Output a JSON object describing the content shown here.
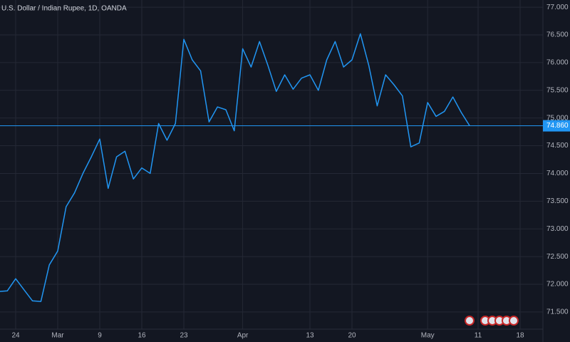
{
  "chart_data": {
    "type": "line",
    "title": "U.S. Dollar / Indian Rupee, 1D, OANDA",
    "categories": [
      null,
      null,
      "24",
      null,
      null,
      null,
      null,
      "Mar",
      null,
      null,
      null,
      null,
      "9",
      null,
      null,
      null,
      null,
      "16",
      null,
      null,
      null,
      null,
      "23",
      null,
      null,
      null,
      null,
      null,
      null,
      "Apr",
      null,
      null,
      null,
      null,
      null,
      null,
      null,
      "13",
      null,
      null,
      null,
      null,
      "20",
      null,
      null,
      null,
      null,
      null,
      null,
      null,
      null,
      "May",
      null,
      null,
      null,
      null,
      null,
      "11",
      null,
      null,
      null,
      null,
      "18",
      null,
      null
    ],
    "values": [
      71.87,
      71.88,
      72.1,
      71.9,
      71.7,
      71.69,
      72.35,
      72.6,
      73.4,
      73.65,
      74.0,
      74.3,
      74.62,
      73.73,
      74.3,
      74.4,
      73.9,
      74.1,
      74.0,
      74.9,
      74.6,
      74.9,
      76.42,
      76.05,
      75.85,
      74.93,
      75.2,
      75.15,
      74.77,
      76.25,
      75.92,
      76.38,
      75.95,
      75.48,
      75.78,
      75.52,
      75.72,
      75.78,
      75.5,
      76.05,
      76.38,
      75.92,
      76.05,
      76.52,
      75.95,
      75.22,
      75.78,
      75.6,
      75.4,
      74.48,
      74.55,
      75.28,
      75.03,
      75.12,
      75.38,
      75.1,
      74.86,
      null,
      null,
      null,
      null,
      null,
      null,
      null,
      null
    ],
    "color": "#2196f3",
    "ylim": [
      71.19,
      77.13
    ],
    "yticks": [
      {
        "value": 71.5,
        "label": "71.500"
      },
      {
        "value": 72,
        "label": "72.000"
      },
      {
        "value": 72.5,
        "label": "72.500"
      },
      {
        "value": 73,
        "label": "73.000"
      },
      {
        "value": 73.5,
        "label": "73.500"
      },
      {
        "value": 74,
        "label": "74.000"
      },
      {
        "value": 74.5,
        "label": "74.500"
      },
      {
        "value": 75,
        "label": "75.000"
      },
      {
        "value": 75.5,
        "label": "75.500"
      },
      {
        "value": 76,
        "label": "76.000"
      },
      {
        "value": 76.5,
        "label": "76.500"
      },
      {
        "value": 77,
        "label": "77.000"
      }
    ],
    "price_line": {
      "value": 74.86,
      "label": "74.860"
    },
    "grid": true
  }
}
